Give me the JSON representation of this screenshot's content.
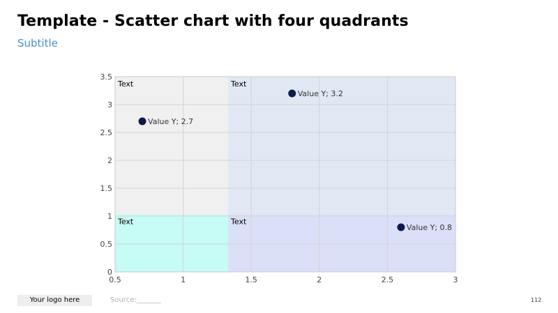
{
  "header": {
    "title": "Template - Scatter chart with four quadrants",
    "subtitle": "Subtitle"
  },
  "footer": {
    "logo": "Your logo here",
    "source": "Source:_______",
    "page_number": "112"
  },
  "chart_data": {
    "type": "scatter",
    "xlim": [
      0.5,
      3
    ],
    "ylim": [
      0,
      3.5
    ],
    "x_ticks": [
      0.5,
      1,
      1.5,
      2,
      2.5,
      3
    ],
    "y_ticks": [
      0,
      0.5,
      1,
      1.5,
      2,
      2.5,
      3,
      3.5
    ],
    "x_tick_labels": [
      "0.5",
      "1",
      "1.5",
      "2",
      "2.5",
      "3"
    ],
    "y_tick_labels": [
      "0",
      "0.5",
      "1",
      "1.5",
      "2",
      "2.5",
      "3",
      "3.5"
    ],
    "grid": true,
    "quadrant_split": {
      "x": 1.33,
      "y": 1.03
    },
    "quadrants": [
      {
        "position": "top-left",
        "label": "Text",
        "color": "#f0f0f0"
      },
      {
        "position": "top-right",
        "label": "Text",
        "color": "#e0e9f3"
      },
      {
        "position": "bottom-left",
        "label": "Text",
        "color": "#c6fbf6"
      },
      {
        "position": "bottom-right",
        "label": "Text",
        "color": "#dbe0f8"
      }
    ],
    "points": [
      {
        "x": 0.7,
        "y": 2.7,
        "label": "Value Y; 2.7"
      },
      {
        "x": 1.8,
        "y": 3.2,
        "label": "Value Y; 3.2"
      },
      {
        "x": 2.6,
        "y": 0.8,
        "label": "Value Y; 0.8"
      }
    ],
    "point_color": "#0d1b4a"
  }
}
